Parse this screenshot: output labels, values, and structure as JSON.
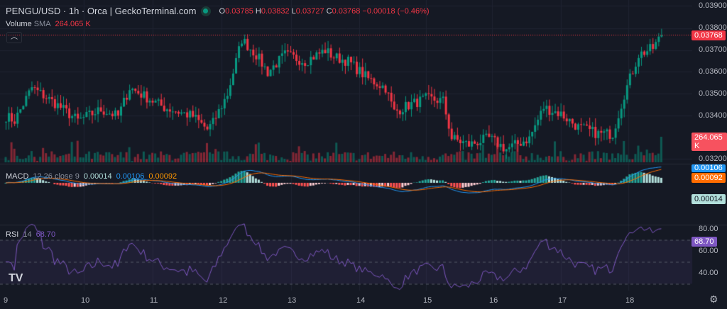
{
  "header": {
    "title": "PENGU/USD · 1h · Orca | GeckoTerminal.com",
    "ohlc": {
      "o_label": "O",
      "o": "0.03785",
      "h_label": "H",
      "h": "0.03832",
      "l_label": "L",
      "l": "0.03727",
      "c_label": "C",
      "c": "0.03768",
      "change": "−0.00018 (−0.46%)"
    }
  },
  "volume": {
    "label": "Volume",
    "sma_label": "SMA",
    "value": "264.065 K",
    "tag": "264.065 K"
  },
  "macd": {
    "label": "MACD",
    "params": "12 26 close 9",
    "hist": "0.00014",
    "macd": "0.00106",
    "signal": "0.00092"
  },
  "rsi": {
    "label": "RSI",
    "params": "14",
    "value": "68.70",
    "levels": [
      "80.00",
      "60.00",
      "40.00"
    ]
  },
  "price_axis": [
    "0.03900",
    "0.03800",
    "0.03700",
    "0.03600",
    "0.03500",
    "0.03400",
    "0.03200"
  ],
  "last_price": "0.03768",
  "x_axis": [
    "9",
    "10",
    "11",
    "12",
    "13",
    "14",
    "15",
    "16",
    "17",
    "18"
  ],
  "colors": {
    "up": "#089981",
    "down": "#f23645",
    "macd": "#2962ff",
    "signal": "#ff6d00",
    "rsi": "#7e57c2"
  },
  "chart_data": {
    "type": "candlestick",
    "approx_close_anchors": [
      [
        0,
        0.034
      ],
      [
        3,
        0.0338
      ],
      [
        9,
        0.0353
      ],
      [
        18,
        0.0345
      ],
      [
        25,
        0.0338
      ],
      [
        33,
        0.0343
      ],
      [
        39,
        0.034
      ],
      [
        43,
        0.0353
      ],
      [
        47,
        0.035
      ],
      [
        55,
        0.0344
      ],
      [
        65,
        0.034
      ],
      [
        70,
        0.0334
      ],
      [
        72,
        0.0337
      ],
      [
        77,
        0.035
      ],
      [
        82,
        0.0375
      ],
      [
        87,
        0.0368
      ],
      [
        91,
        0.036
      ],
      [
        97,
        0.0368
      ],
      [
        104,
        0.0365
      ],
      [
        111,
        0.037
      ],
      [
        114,
        0.0367
      ],
      [
        119,
        0.0365
      ],
      [
        126,
        0.0357
      ],
      [
        132,
        0.0353
      ],
      [
        135,
        0.0342
      ],
      [
        140,
        0.0345
      ],
      [
        146,
        0.0348
      ],
      [
        152,
        0.0347
      ],
      [
        155,
        0.033
      ],
      [
        161,
        0.0327
      ],
      [
        168,
        0.033
      ],
      [
        174,
        0.0325
      ],
      [
        182,
        0.033
      ],
      [
        187,
        0.0344
      ],
      [
        193,
        0.0341
      ],
      [
        199,
        0.0335
      ],
      [
        206,
        0.0332
      ],
      [
        211,
        0.0332
      ],
      [
        215,
        0.035
      ],
      [
        220,
        0.0368
      ],
      [
        225,
        0.0371
      ],
      [
        228,
        0.03768
      ]
    ]
  }
}
